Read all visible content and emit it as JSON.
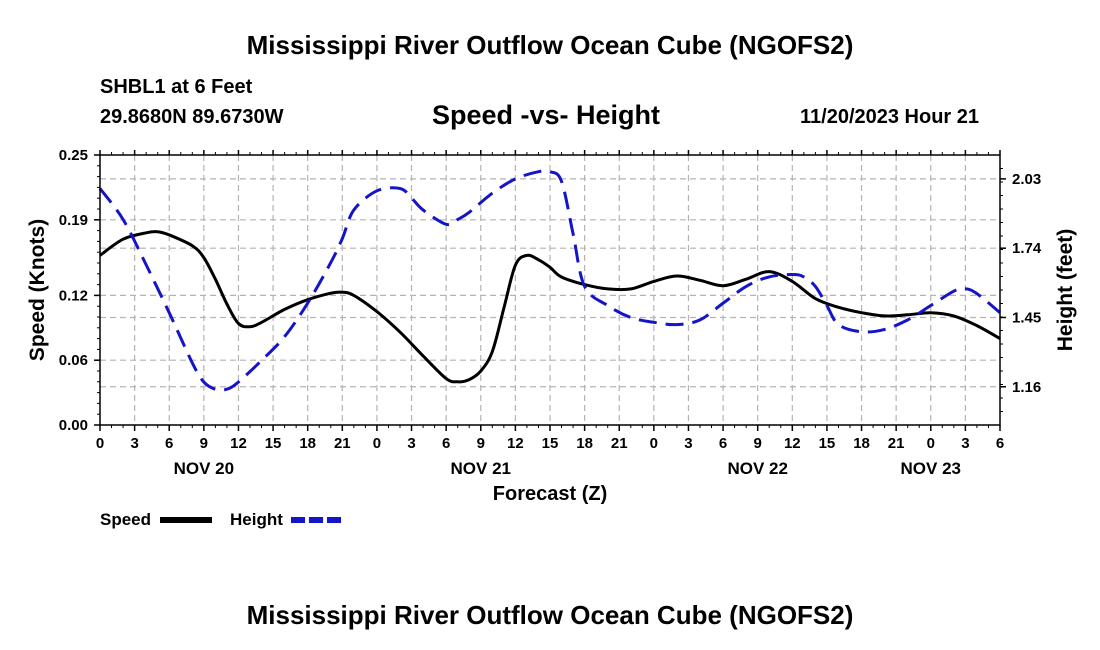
{
  "title": "Mississippi River Outflow Ocean Cube (NGOFS2)",
  "footer_title": "Mississippi River Outflow Ocean Cube (NGOFS2)",
  "station": "SHBL1 at 6 Feet",
  "coordinates": "29.8680N  89.6730W",
  "subtitle": "Speed -vs- Height",
  "datetime": "11/20/2023 Hour 21",
  "colors": {
    "speed": "#000000",
    "height": "#1414c8",
    "grid": "#b4b4b4"
  },
  "chart_data": {
    "type": "line",
    "title": "Speed -vs- Height",
    "xlabel": "Forecast (Z)",
    "ylabel": "Speed (Knots)",
    "y2label": "Height (feet)",
    "xlim": [
      0,
      78
    ],
    "ylim": [
      0,
      0.25
    ],
    "y2lim": [
      1.0,
      2.13
    ],
    "grid": true,
    "x_tick_hours": [
      0,
      3,
      6,
      9,
      12,
      15,
      18,
      21,
      24,
      27,
      30,
      33,
      36,
      39,
      42,
      45,
      48,
      51,
      54,
      57,
      60,
      63,
      66,
      69,
      72,
      75,
      78
    ],
    "x_tick_labels": [
      "0",
      "3",
      "6",
      "9",
      "12",
      "15",
      "18",
      "21",
      "0",
      "3",
      "6",
      "9",
      "12",
      "15",
      "18",
      "21",
      "0",
      "3",
      "6",
      "9",
      "12",
      "15",
      "18",
      "21",
      "0",
      "3",
      "6"
    ],
    "day_labels": [
      {
        "hour": 9,
        "label": "NOV 20"
      },
      {
        "hour": 33,
        "label": "NOV 21"
      },
      {
        "hour": 57,
        "label": "NOV 22"
      },
      {
        "hour": 72,
        "label": "NOV 23"
      }
    ],
    "y_ticks": [
      0.0,
      0.06,
      0.12,
      0.19,
      0.25
    ],
    "y_tick_labels": [
      "0.00",
      "0.06",
      "0.12",
      "0.19",
      "0.25"
    ],
    "y2_ticks": [
      1.16,
      1.45,
      1.74,
      2.03
    ],
    "y2_tick_labels": [
      "1.16",
      "1.45",
      "1.74",
      "2.03"
    ],
    "series": [
      {
        "name": "Speed",
        "axis": "left",
        "style": "solid",
        "x": [
          0,
          2,
          4,
          5,
          6,
          8,
          9,
          10,
          11,
          12,
          13,
          14,
          16,
          18,
          20,
          21,
          22,
          24,
          26,
          28,
          30,
          31,
          32,
          33,
          34,
          35,
          36,
          37,
          38,
          39,
          40,
          42,
          44,
          46,
          48,
          50,
          52,
          54,
          56,
          58,
          60,
          62,
          64,
          66,
          68,
          70,
          72,
          74,
          76,
          78
        ],
        "values": [
          0.157,
          0.172,
          0.178,
          0.179,
          0.176,
          0.166,
          0.155,
          0.135,
          0.112,
          0.094,
          0.091,
          0.095,
          0.107,
          0.116,
          0.122,
          0.123,
          0.12,
          0.105,
          0.086,
          0.064,
          0.043,
          0.04,
          0.042,
          0.05,
          0.068,
          0.108,
          0.148,
          0.157,
          0.153,
          0.146,
          0.137,
          0.13,
          0.126,
          0.126,
          0.133,
          0.138,
          0.134,
          0.129,
          0.135,
          0.142,
          0.133,
          0.117,
          0.109,
          0.104,
          0.101,
          0.102,
          0.104,
          0.101,
          0.092,
          0.08
        ]
      },
      {
        "name": "Height",
        "axis": "right",
        "style": "dashed",
        "x": [
          0,
          2,
          4,
          6,
          8,
          9,
          10,
          11,
          12,
          14,
          16,
          18,
          20,
          21,
          22,
          24,
          26,
          27,
          28,
          30,
          31,
          32,
          34,
          36,
          38,
          39,
          40,
          41,
          42,
          44,
          46,
          48,
          50,
          52,
          54,
          56,
          58,
          60,
          61,
          62,
          63,
          64,
          66,
          68,
          70,
          72,
          74,
          75,
          76,
          78
        ],
        "values": [
          1.99,
          1.86,
          1.67,
          1.47,
          1.26,
          1.18,
          1.15,
          1.15,
          1.18,
          1.27,
          1.37,
          1.51,
          1.68,
          1.78,
          1.9,
          1.98,
          1.99,
          1.95,
          1.9,
          1.84,
          1.86,
          1.89,
          1.97,
          2.03,
          2.06,
          2.06,
          2.02,
          1.8,
          1.58,
          1.5,
          1.45,
          1.43,
          1.42,
          1.44,
          1.51,
          1.58,
          1.62,
          1.63,
          1.62,
          1.58,
          1.5,
          1.42,
          1.39,
          1.4,
          1.44,
          1.5,
          1.56,
          1.57,
          1.55,
          1.47
        ]
      }
    ],
    "legend": [
      {
        "label": "Speed",
        "style": "solid"
      },
      {
        "label": "Height",
        "style": "dashed"
      }
    ],
    "legend_position": "bottom-left"
  }
}
